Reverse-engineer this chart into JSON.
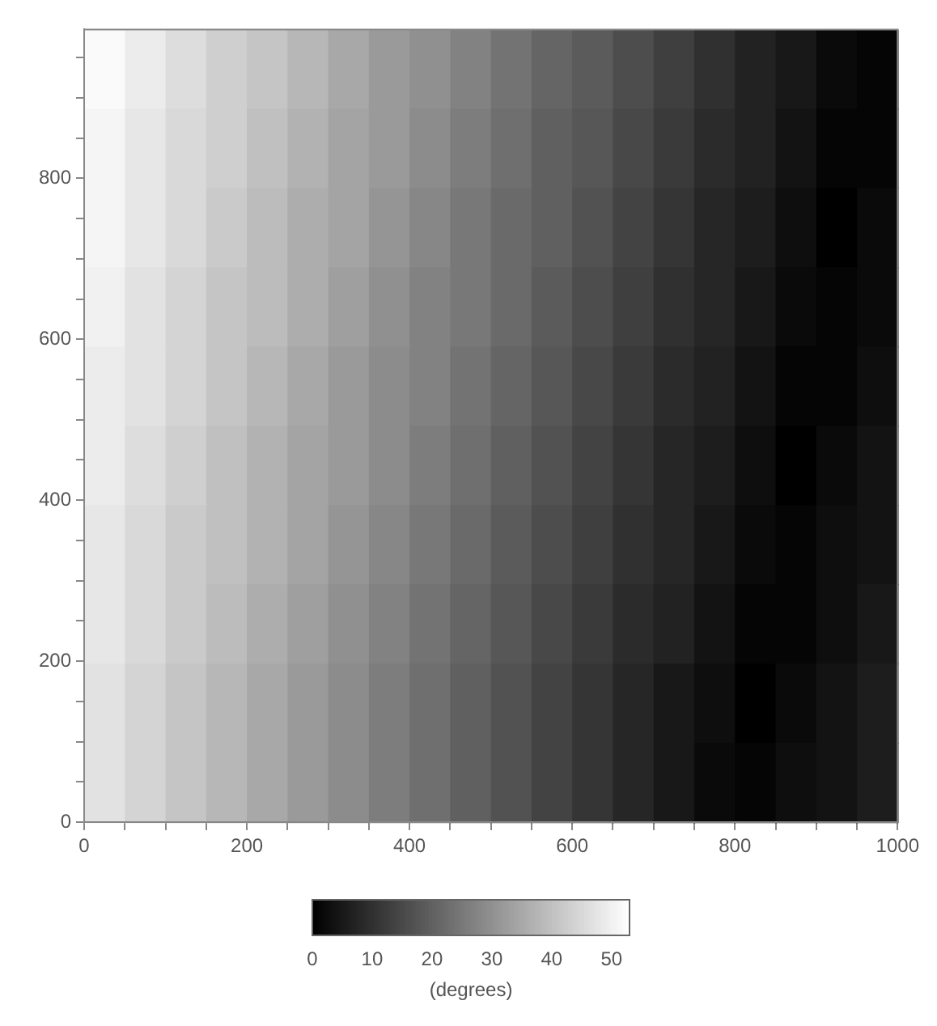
{
  "chart_data": {
    "type": "heatmap",
    "x": [
      25,
      75,
      125,
      175,
      225,
      275,
      325,
      375,
      425,
      475,
      525,
      575,
      625,
      675,
      725,
      775,
      825,
      875,
      925,
      975
    ],
    "y": [
      936,
      837,
      739,
      640,
      542,
      443,
      345,
      246,
      148,
      49
    ],
    "xlim": [
      0,
      1000
    ],
    "xticks": [
      0,
      {
        "value": 50,
        "label": null
      },
      {
        "value": 100,
        "label": null
      },
      {
        "value": 150,
        "label": null
      },
      200,
      {
        "value": 250,
        "label": null
      },
      {
        "value": 300,
        "label": null
      },
      {
        "value": 350,
        "label": null
      },
      400,
      {
        "value": 450,
        "label": null
      },
      {
        "value": 500,
        "label": null
      },
      {
        "value": 550,
        "label": null
      },
      600,
      {
        "value": 650,
        "label": null
      },
      {
        "value": 700,
        "label": null
      },
      {
        "value": 750,
        "label": null
      },
      800,
      {
        "value": 850,
        "label": null
      },
      {
        "value": 900,
        "label": null
      },
      {
        "value": 950,
        "label": null
      },
      1000
    ],
    "ylim": [
      0,
      985
    ],
    "yticks": [
      0,
      {
        "value": 50,
        "label": null
      },
      {
        "value": 100,
        "label": null
      },
      {
        "value": 150,
        "label": null
      },
      200,
      {
        "value": 250,
        "label": null
      },
      {
        "value": 300,
        "label": null
      },
      {
        "value": 350,
        "label": null
      },
      400,
      {
        "value": 450,
        "label": null
      },
      {
        "value": 500,
        "label": null
      },
      {
        "value": 550,
        "label": null
      },
      600,
      {
        "value": 650,
        "label": null
      },
      {
        "value": 700,
        "label": null
      },
      {
        "value": 750,
        "label": null
      },
      800,
      {
        "value": 850,
        "label": null
      },
      {
        "value": 900,
        "label": null
      },
      {
        "value": 950,
        "label": null
      }
    ],
    "cells": [
      [
        52,
        49,
        46,
        43,
        41,
        38,
        35,
        32,
        30,
        27,
        24,
        21,
        19,
        16,
        13,
        10,
        7,
        5,
        2,
        1
      ],
      [
        51,
        48,
        45,
        43,
        40,
        37,
        34,
        32,
        29,
        26,
        23,
        20,
        18,
        15,
        12,
        9,
        7,
        4,
        1,
        1
      ],
      [
        51,
        48,
        45,
        42,
        39,
        36,
        34,
        31,
        28,
        25,
        22,
        20,
        17,
        14,
        11,
        8,
        6,
        3,
        0,
        2
      ],
      [
        50,
        47,
        44,
        41,
        39,
        36,
        33,
        30,
        27,
        25,
        22,
        19,
        16,
        13,
        10,
        8,
        5,
        2,
        1,
        2
      ],
      [
        49,
        47,
        44,
        41,
        38,
        35,
        32,
        29,
        27,
        24,
        21,
        18,
        15,
        12,
        9,
        7,
        4,
        1,
        1,
        3
      ],
      [
        49,
        46,
        43,
        40,
        37,
        34,
        32,
        29,
        26,
        23,
        20,
        17,
        14,
        11,
        8,
        6,
        3,
        0,
        2,
        4
      ],
      [
        48,
        45,
        42,
        40,
        37,
        34,
        31,
        28,
        25,
        22,
        19,
        16,
        13,
        10,
        8,
        5,
        2,
        1,
        3,
        4
      ],
      [
        48,
        45,
        42,
        39,
        36,
        33,
        30,
        27,
        24,
        21,
        18,
        15,
        12,
        9,
        7,
        4,
        1,
        1,
        3,
        5
      ],
      [
        47,
        44,
        41,
        38,
        35,
        32,
        29,
        26,
        23,
        20,
        17,
        14,
        11,
        8,
        5,
        3,
        0,
        2,
        4,
        6
      ],
      [
        47,
        44,
        41,
        38,
        35,
        32,
        29,
        26,
        23,
        20,
        17,
        14,
        11,
        8,
        5,
        2,
        1,
        3,
        4,
        6
      ]
    ],
    "clim": [
      0,
      53
    ],
    "cticks": [
      0,
      10,
      20,
      30,
      40,
      50
    ],
    "clabel": "(degrees)"
  }
}
